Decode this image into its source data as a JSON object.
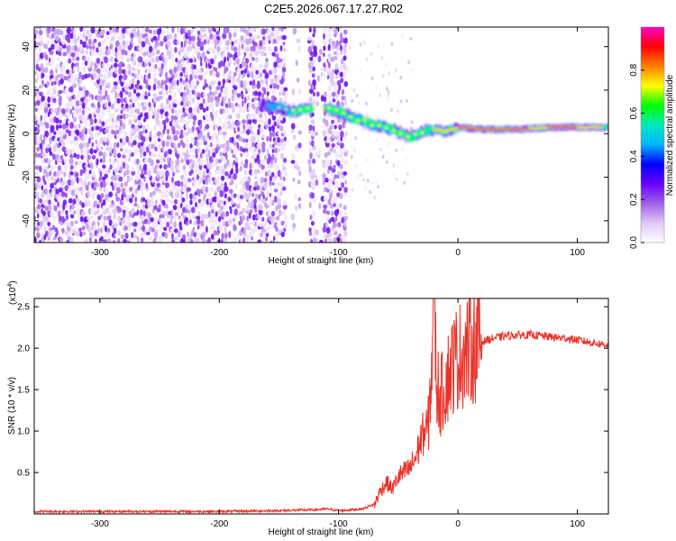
{
  "title": "C2E5.2026.067.17.27.R02",
  "chart_data": [
    {
      "type": "heatmap",
      "name": "spectrogram",
      "xlabel": "Height of straight line (km)",
      "ylabel": "Frequency (Hz)",
      "xlim": [
        -355,
        126
      ],
      "ylim": [
        -50,
        49
      ],
      "xticks": [
        -300,
        -200,
        -100,
        0,
        100
      ],
      "xtick_labels": [
        "-300",
        "-200",
        "-100",
        "0",
        "100"
      ],
      "yticks": [
        -40,
        -20,
        0,
        20,
        40
      ],
      "ytick_labels": [
        "-40",
        "-20",
        "0",
        "20",
        "40"
      ],
      "colorbar": {
        "label": "Normalized spectral amplitude",
        "range": [
          0,
          1
        ],
        "ticks": [
          0.0,
          0.2,
          0.4,
          0.6,
          0.8
        ],
        "tick_labels": [
          "0.0",
          "0.2",
          "0.4",
          "0.6",
          "0.8"
        ],
        "colors": [
          "#ffffff",
          "#e0c8f4",
          "#a060e8",
          "#6a00ff",
          "#0000ff",
          "#00b4ff",
          "#00e8c0",
          "#00ff00",
          "#ffff00",
          "#ff8000",
          "#ff0000",
          "#ff00c8"
        ]
      },
      "ridge_frequency_hz": {
        "x": [
          -160,
          -150,
          -140,
          -130,
          -120,
          -110,
          -100,
          -90,
          -80,
          -70,
          -60,
          -50,
          -40,
          -30,
          -20,
          -10,
          0,
          20,
          50,
          80,
          100,
          126
        ],
        "y": [
          13,
          12,
          10,
          11,
          12,
          12,
          10,
          8,
          6,
          4,
          3,
          1,
          -2,
          1,
          2,
          1,
          3,
          2,
          2,
          3,
          3,
          3
        ]
      },
      "noise_region_km": [
        -355,
        -95
      ]
    },
    {
      "type": "line",
      "name": "snr",
      "xlabel": "Height of straight line (km)",
      "ylabel": "SNR (10 * v/v)",
      "yscale_label": "(x10",
      "yscale_exp": "4",
      "xlim": [
        -355,
        126
      ],
      "ylim": [
        0,
        2.6
      ],
      "xticks": [
        -300,
        -200,
        -100,
        0,
        100
      ],
      "xtick_labels": [
        "-300",
        "-200",
        "-100",
        "0",
        "100"
      ],
      "yticks": [
        0.5,
        1.0,
        1.5,
        2.0,
        2.5
      ],
      "ytick_labels": [
        "0.5",
        "1.0",
        "1.5",
        "2.0",
        "2.5"
      ],
      "series": [
        {
          "name": "SNR",
          "color": "#e8322a",
          "x": [
            -355,
            -300,
            -250,
            -200,
            -150,
            -120,
            -110,
            -100,
            -90,
            -80,
            -70,
            -65,
            -60,
            -55,
            -50,
            -45,
            -40,
            -35,
            -30,
            -25,
            -22,
            -20,
            -18,
            -15,
            -10,
            -5,
            0,
            5,
            10,
            15,
            20,
            25,
            30,
            40,
            50,
            60,
            70,
            80,
            90,
            100,
            110,
            120,
            126
          ],
          "y": [
            0.03,
            0.03,
            0.03,
            0.03,
            0.04,
            0.05,
            0.06,
            0.04,
            0.05,
            0.06,
            0.12,
            0.28,
            0.38,
            0.3,
            0.45,
            0.5,
            0.55,
            0.7,
            0.95,
            1.05,
            1.8,
            2.6,
            1.6,
            1.4,
            1.6,
            1.8,
            1.9,
            1.95,
            2.0,
            2.05,
            2.08,
            2.1,
            2.12,
            2.15,
            2.16,
            2.16,
            2.15,
            2.13,
            2.12,
            2.1,
            2.07,
            2.05,
            2.04
          ]
        }
      ]
    }
  ]
}
